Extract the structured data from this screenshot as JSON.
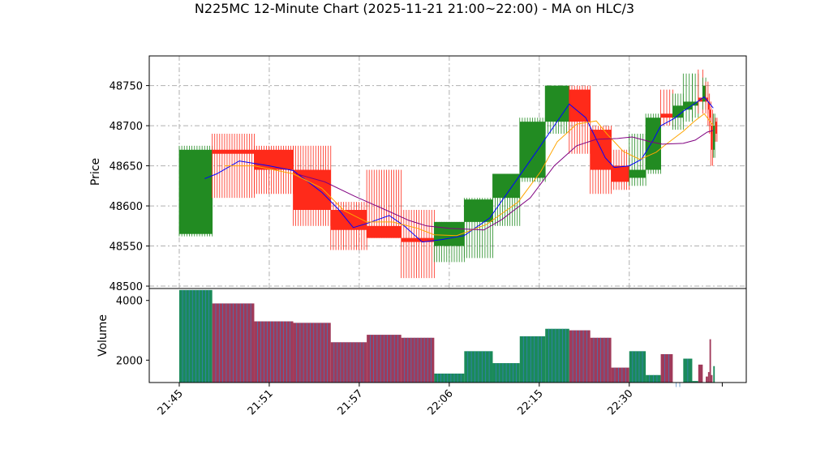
{
  "chart_data": {
    "type": "candlestick",
    "title": "N225MC 12-Minute Chart (2025-11-21 21:00~22:00) - MA on HLC/3",
    "ylabel_price": "Price",
    "ylabel_volume": "Volume",
    "price_ylim": [
      48497,
      48787
    ],
    "volume_ylim": [
      1250,
      4400
    ],
    "price_ticks": [
      "48500",
      "48550",
      "48600",
      "48650",
      "48700",
      "48750"
    ],
    "volume_ticks": [
      "2000",
      "4000"
    ],
    "x_ticks": [
      "21:45",
      "21:51",
      "21:57",
      "22:06",
      "22:15",
      "22:30"
    ],
    "x_tick_positions_minutes": [
      0,
      6,
      12,
      18,
      24,
      30
    ],
    "x_range_minutes": [
      -2,
      37.8
    ],
    "grid": true,
    "up_color": "#228B22",
    "down_color": "#ff2a1a",
    "candles": [
      {
        "t": 0,
        "w": 2.2,
        "open": 48565,
        "high": 48675,
        "low": 48562,
        "close": 48670,
        "volume": 4350
      },
      {
        "t": 2.2,
        "w": 2.8,
        "open": 48670,
        "high": 48690,
        "low": 48610,
        "close": 48665,
        "volume": 3900
      },
      {
        "t": 5.0,
        "w": 2.6,
        "open": 48670,
        "high": 48675,
        "low": 48615,
        "close": 48645,
        "volume": 3300
      },
      {
        "t": 7.6,
        "w": 2.5,
        "open": 48645,
        "high": 48675,
        "low": 48575,
        "close": 48595,
        "volume": 3250
      },
      {
        "t": 10.1,
        "w": 2.4,
        "open": 48595,
        "high": 48605,
        "low": 48545,
        "close": 48570,
        "volume": 2600
      },
      {
        "t": 12.5,
        "w": 2.3,
        "open": 48575,
        "high": 48645,
        "low": 48560,
        "close": 48560,
        "volume": 2850
      },
      {
        "t": 14.8,
        "w": 2.2,
        "open": 48560,
        "high": 48595,
        "low": 48510,
        "close": 48555,
        "volume": 2750
      },
      {
        "t": 17.0,
        "w": 2.0,
        "open": 48550,
        "high": 48580,
        "low": 48530,
        "close": 48580,
        "volume": 1550
      },
      {
        "t": 19.0,
        "w": 1.9,
        "open": 48580,
        "high": 48610,
        "low": 48535,
        "close": 48608,
        "volume": 2300
      },
      {
        "t": 20.9,
        "w": 1.8,
        "open": 48610,
        "high": 48640,
        "low": 48575,
        "close": 48640,
        "volume": 1900
      },
      {
        "t": 22.7,
        "w": 1.7,
        "open": 48635,
        "high": 48710,
        "low": 48630,
        "close": 48705,
        "volume": 2800
      },
      {
        "t": 24.4,
        "w": 1.6,
        "open": 48705,
        "high": 48750,
        "low": 48690,
        "close": 48750,
        "volume": 3050
      },
      {
        "t": 26.0,
        "w": 1.4,
        "open": 48745,
        "high": 48750,
        "low": 48665,
        "close": 48705,
        "volume": 3000
      },
      {
        "t": 27.4,
        "w": 1.4,
        "open": 48695,
        "high": 48700,
        "low": 48615,
        "close": 48645,
        "volume": 2750
      },
      {
        "t": 28.8,
        "w": 1.2,
        "open": 48650,
        "high": 48670,
        "low": 48620,
        "close": 48630,
        "volume": 1750
      },
      {
        "t": 30.0,
        "w": 1.1,
        "open": 48635,
        "high": 48690,
        "low": 48625,
        "close": 48645,
        "volume": 2300
      },
      {
        "t": 31.1,
        "w": 1.0,
        "open": 48645,
        "high": 48715,
        "low": 48640,
        "close": 48710,
        "volume": 1500
      },
      {
        "t": 32.1,
        "w": 0.8,
        "open": 48715,
        "high": 48745,
        "low": 48700,
        "close": 48710,
        "volume": 2200
      },
      {
        "t": 32.9,
        "w": 0.7,
        "open": 48710,
        "high": 48740,
        "low": 48695,
        "close": 48725,
        "volume": 1100
      },
      {
        "t": 33.6,
        "w": 0.6,
        "open": 48720,
        "high": 48765,
        "low": 48705,
        "close": 48730,
        "volume": 2050
      },
      {
        "t": 34.2,
        "w": 0.4,
        "open": 48725,
        "high": 48765,
        "low": 48710,
        "close": 48730,
        "volume": 1300
      },
      {
        "t": 34.6,
        "w": 0.3,
        "open": 48735,
        "high": 48770,
        "low": 48715,
        "close": 48730,
        "volume": 1850
      },
      {
        "t": 34.9,
        "w": 0.2,
        "open": 48730,
        "high": 48760,
        "low": 48720,
        "close": 48750,
        "volume": 1250
      },
      {
        "t": 35.1,
        "w": 0.15,
        "open": 48735,
        "high": 48755,
        "low": 48715,
        "close": 48730,
        "volume": 1450
      },
      {
        "t": 35.25,
        "w": 0.1,
        "open": 48730,
        "high": 48740,
        "low": 48700,
        "close": 48720,
        "volume": 1600
      },
      {
        "t": 35.35,
        "w": 0.1,
        "open": 48720,
        "high": 48730,
        "low": 48690,
        "close": 48710,
        "volume": 2700
      },
      {
        "t": 35.45,
        "w": 0.1,
        "open": 48700,
        "high": 48720,
        "low": 48650,
        "close": 48670,
        "volume": 1500
      },
      {
        "t": 35.6,
        "w": 0.1,
        "open": 48670,
        "high": 48715,
        "low": 48660,
        "close": 48700,
        "volume": 1800
      },
      {
        "t": 35.75,
        "w": 0.1,
        "open": 48705,
        "high": 48710,
        "low": 48680,
        "close": 48690,
        "volume": 1050
      }
    ],
    "moving_averages": [
      {
        "color": "#0000ff",
        "points": [
          [
            1.7,
            48634
          ],
          [
            2.5,
            48640
          ],
          [
            4,
            48656
          ],
          [
            6,
            48650
          ],
          [
            7.6,
            48644
          ],
          [
            9.5,
            48617
          ],
          [
            10.6,
            48596
          ],
          [
            11.6,
            48573
          ],
          [
            12.5,
            48578
          ],
          [
            14,
            48588
          ],
          [
            15,
            48575
          ],
          [
            16.2,
            48555
          ],
          [
            17.5,
            48558
          ],
          [
            19,
            48563
          ],
          [
            20.7,
            48585
          ],
          [
            22.4,
            48630
          ],
          [
            23.9,
            48670
          ],
          [
            25,
            48700
          ],
          [
            26,
            48727
          ],
          [
            27.1,
            48710
          ],
          [
            28.4,
            48660
          ],
          [
            29,
            48648
          ],
          [
            30,
            48650
          ],
          [
            30.8,
            48658
          ],
          [
            31.6,
            48682
          ],
          [
            32.1,
            48700
          ],
          [
            33,
            48709
          ],
          [
            33.6,
            48718
          ],
          [
            34.4,
            48728
          ],
          [
            35,
            48736
          ],
          [
            35.6,
            48722
          ]
        ]
      },
      {
        "color": "#ffa500",
        "points": [
          [
            3,
            48650
          ],
          [
            5,
            48650
          ],
          [
            7.6,
            48640
          ],
          [
            9.5,
            48622
          ],
          [
            11,
            48594
          ],
          [
            12.5,
            48580
          ],
          [
            14.2,
            48580
          ],
          [
            15.9,
            48572
          ],
          [
            17,
            48564
          ],
          [
            18.5,
            48563
          ],
          [
            20.5,
            48577
          ],
          [
            22.6,
            48605
          ],
          [
            24.1,
            48643
          ],
          [
            25.2,
            48680
          ],
          [
            26.5,
            48702
          ],
          [
            27.8,
            48706
          ],
          [
            28.5,
            48690
          ],
          [
            29.6,
            48668
          ],
          [
            30.7,
            48658
          ],
          [
            31.8,
            48667
          ],
          [
            32.4,
            48676
          ],
          [
            33.6,
            48693
          ],
          [
            34.3,
            48705
          ],
          [
            35,
            48715
          ],
          [
            35.6,
            48700
          ]
        ]
      },
      {
        "color": "#800080",
        "points": [
          [
            7.8,
            48640
          ],
          [
            9.7,
            48630
          ],
          [
            11.7,
            48612
          ],
          [
            14,
            48593
          ],
          [
            15.3,
            48582
          ],
          [
            16.5,
            48575
          ],
          [
            18,
            48572
          ],
          [
            20.3,
            48570
          ],
          [
            21.5,
            48583
          ],
          [
            23.4,
            48610
          ],
          [
            25,
            48650
          ],
          [
            26.5,
            48675
          ],
          [
            27.8,
            48683
          ],
          [
            29.2,
            48684
          ],
          [
            30.2,
            48686
          ],
          [
            31.4,
            48680
          ],
          [
            32.2,
            48677
          ],
          [
            33.6,
            48678
          ],
          [
            34.4,
            48682
          ],
          [
            35.2,
            48692
          ],
          [
            35.6,
            48694
          ]
        ]
      }
    ]
  }
}
